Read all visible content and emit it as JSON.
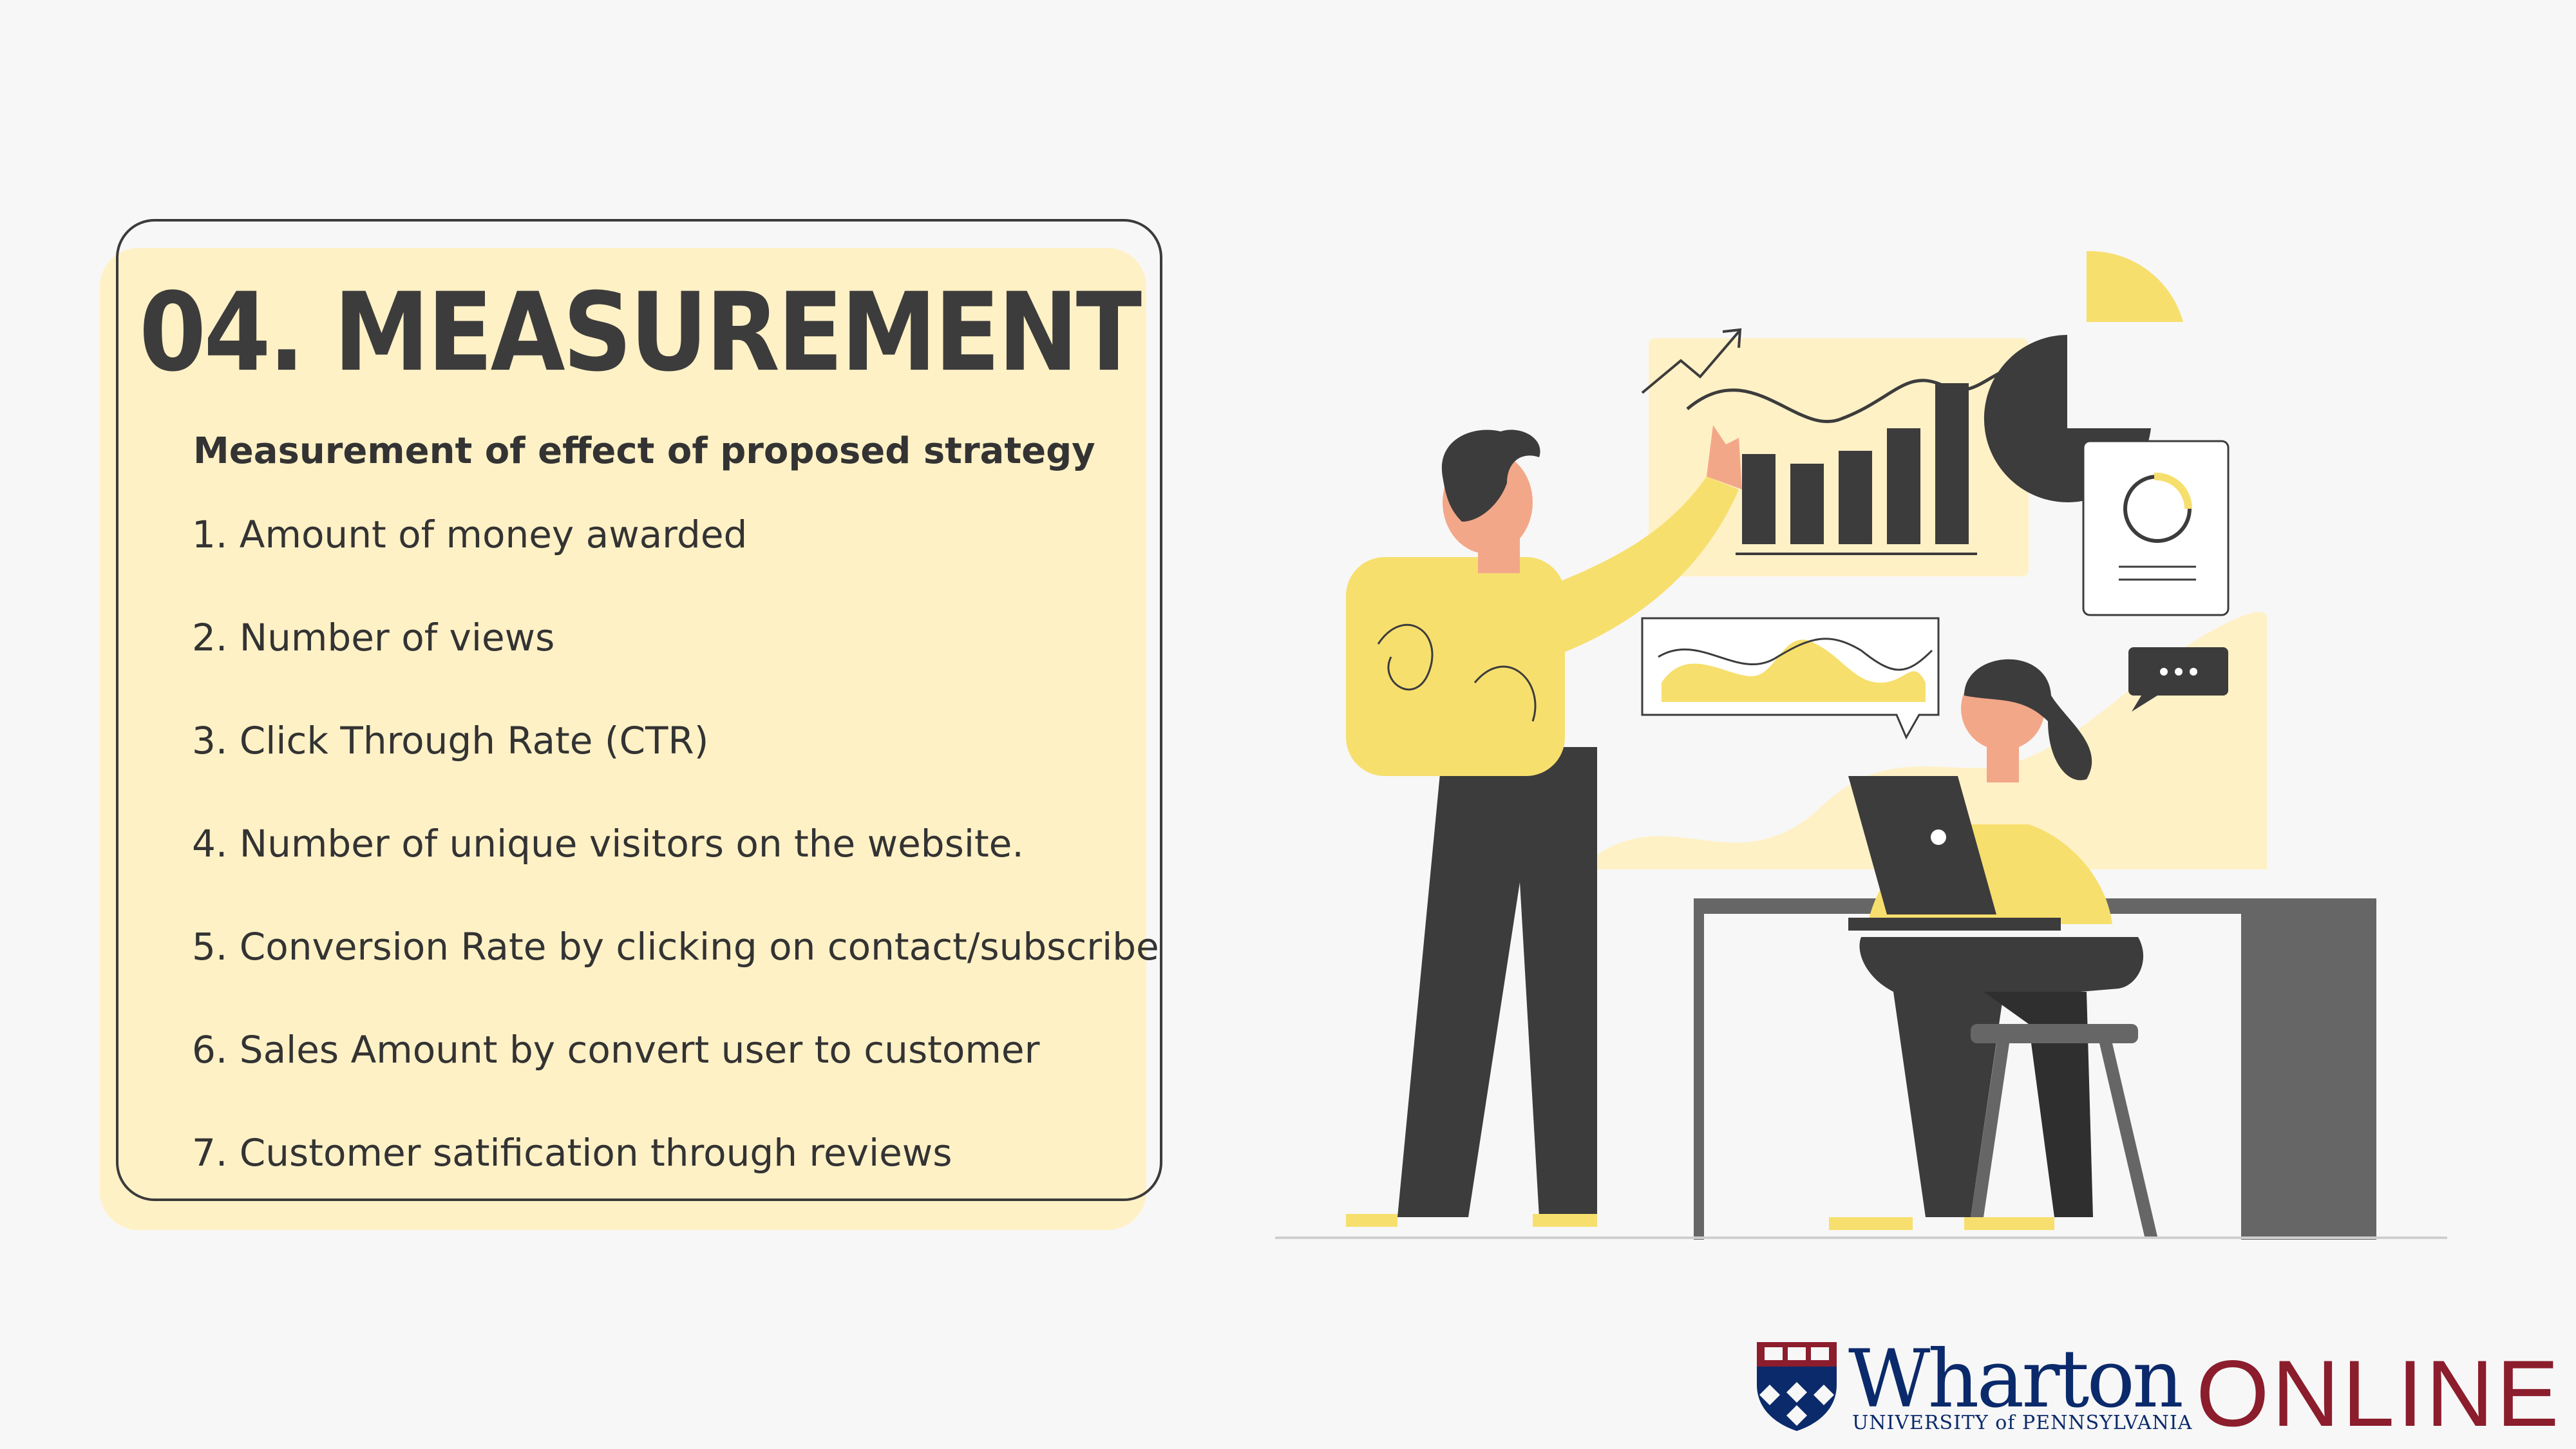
{
  "slide": {
    "title": "04. MEASUREMENT",
    "subtitle": "Measurement of effect of proposed strategy",
    "items": [
      "1. Amount of money awarded",
      "2. Number of views",
      "3. Click Through Rate (CTR)",
      "4. Number of unique visitors on the website.",
      "5. Conversion Rate by clicking on contact/subscribe",
      "6. Sales Amount by convert user to customer",
      "7. Customer satification through reviews"
    ]
  },
  "logo": {
    "wordmark": "Wharton",
    "subline": "UNIVERSITY of PENNSYLVANIA",
    "online": "ONLINE"
  },
  "colors": {
    "accent_yellow": "#f7df6e",
    "card_fill": "#fff1c6",
    "dark": "#3c3c3c",
    "wharton_blue": "#0b2a6b",
    "online_red": "#8b1d2c"
  }
}
